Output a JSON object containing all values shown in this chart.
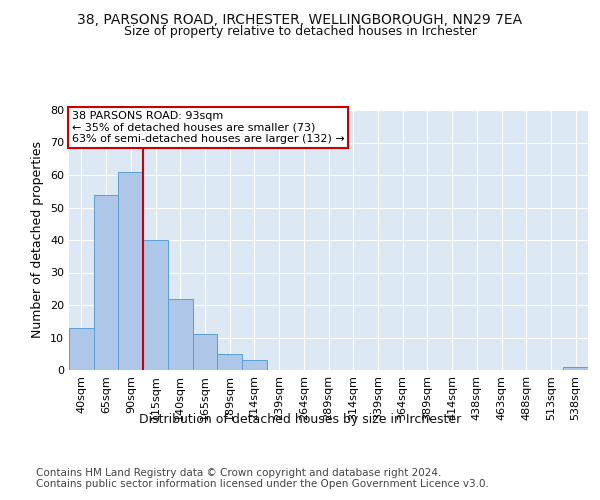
{
  "title_line1": "38, PARSONS ROAD, IRCHESTER, WELLINGBOROUGH, NN29 7EA",
  "title_line2": "Size of property relative to detached houses in Irchester",
  "xlabel": "Distribution of detached houses by size in Irchester",
  "ylabel": "Number of detached properties",
  "bar_values": [
    13,
    54,
    61,
    40,
    22,
    11,
    5,
    3,
    0,
    0,
    0,
    0,
    0,
    0,
    0,
    0,
    0,
    0,
    0,
    0,
    1
  ],
  "bar_labels": [
    "40sqm",
    "65sqm",
    "90sqm",
    "115sqm",
    "140sqm",
    "165sqm",
    "189sqm",
    "214sqm",
    "239sqm",
    "264sqm",
    "289sqm",
    "314sqm",
    "339sqm",
    "364sqm",
    "389sqm",
    "414sqm",
    "438sqm",
    "463sqm",
    "488sqm",
    "513sqm",
    "538sqm"
  ],
  "bar_color": "#aec6e8",
  "bar_edge_color": "#5a9fd4",
  "background_color": "#dde8f5",
  "grid_color": "#ffffff",
  "vline_color": "#cc0000",
  "vline_x_index": 2,
  "annotation_box_text": "38 PARSONS ROAD: 93sqm\n← 35% of detached houses are smaller (73)\n63% of semi-detached houses are larger (132) →",
  "annotation_box_color": "#cc0000",
  "ylim": [
    0,
    80
  ],
  "yticks": [
    0,
    10,
    20,
    30,
    40,
    50,
    60,
    70,
    80
  ],
  "footer_text": "Contains HM Land Registry data © Crown copyright and database right 2024.\nContains public sector information licensed under the Open Government Licence v3.0.",
  "title_fontsize": 10,
  "subtitle_fontsize": 9,
  "axis_label_fontsize": 9,
  "tick_fontsize": 8,
  "footer_fontsize": 7.5,
  "annotation_fontsize": 8
}
